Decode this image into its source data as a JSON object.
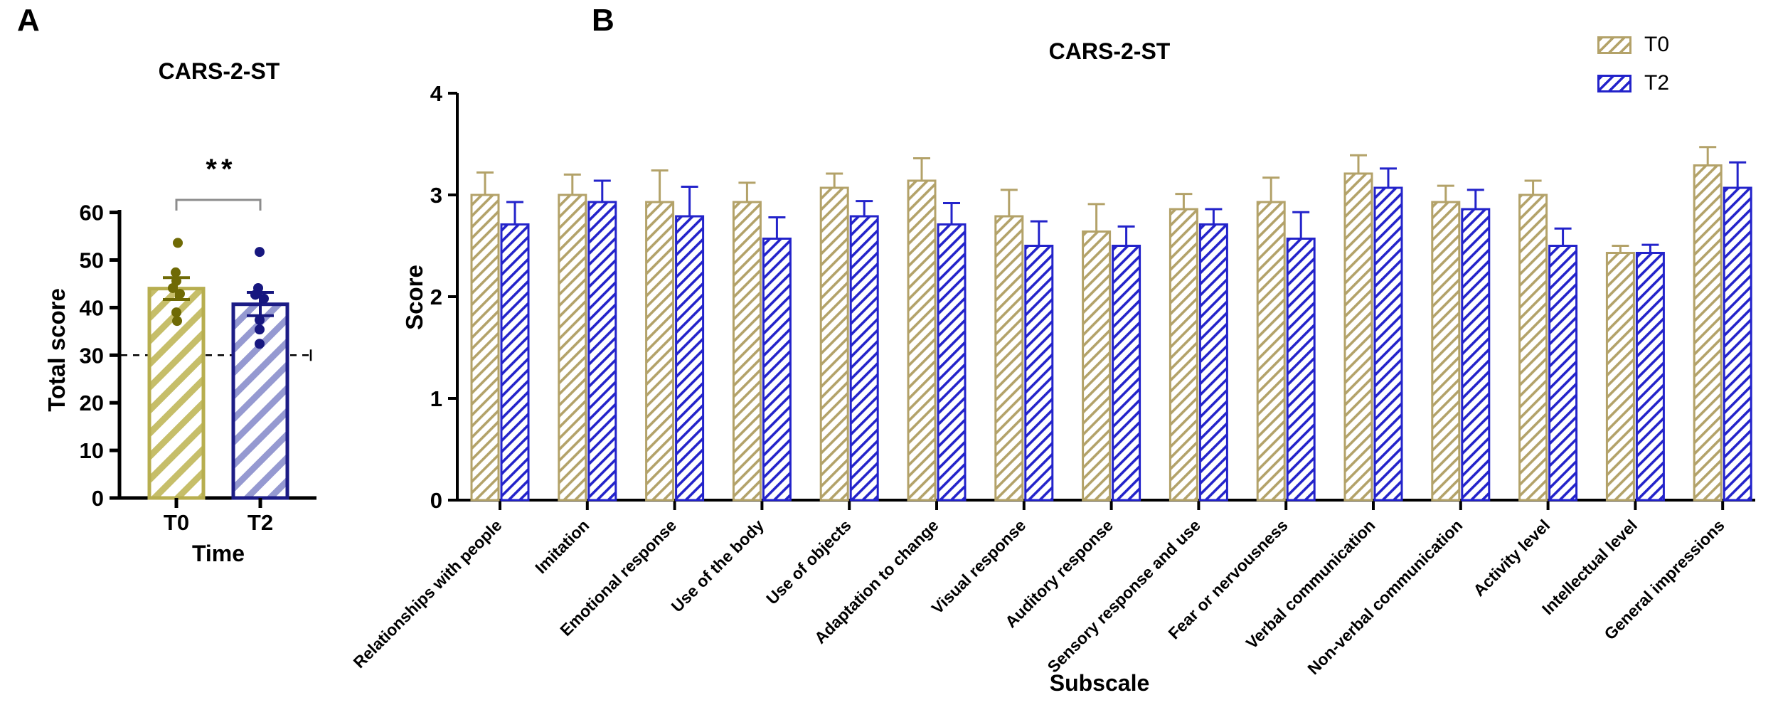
{
  "figure": {
    "panel_a_label": "A",
    "panel_b_label": "B",
    "legend": [
      {
        "label": "T0"
      },
      {
        "label": "T2"
      }
    ]
  },
  "colors": {
    "panel_a_t0_edge": "#b7ae4f",
    "panel_a_t0_hatch": "#c6be69",
    "panel_a_t0_dark": "#6f6a05",
    "panel_a_t2_edge": "#1c1c86",
    "panel_a_t2_hatch": "#9599d1",
    "panel_a_t2_dark": "#17177f",
    "panel_b_t0": "#b3a269",
    "panel_b_t2": "#2323ca",
    "bracket": "#8c8c8c",
    "axis": "#000000"
  },
  "chart_data": [
    {
      "id": "panel-a-total-score",
      "type": "bar",
      "title": "CARS-2-ST",
      "xlabel": "Time",
      "ylabel": "Total score",
      "categories": [
        "T0",
        "T2"
      ],
      "values": [
        44.0,
        40.7
      ],
      "error_up": [
        2.3,
        2.5
      ],
      "error_down": [
        2.3,
        2.4
      ],
      "scatter": {
        "T0": [
          53.6,
          47.4,
          45.6,
          44.1,
          42.9,
          39.0,
          37.2
        ],
        "T2": [
          51.7,
          44.1,
          42.7,
          41.9,
          37.4,
          35.4,
          32.4
        ]
      },
      "yticks": [
        0,
        10,
        20,
        30,
        40,
        50,
        60
      ],
      "ylim": [
        0,
        60
      ],
      "reference_line_y": 30,
      "significance": {
        "label": "**",
        "between": [
          "T0",
          "T2"
        ]
      },
      "grid": false
    },
    {
      "id": "panel-b-subscales",
      "type": "bar",
      "title": "CARS-2-ST",
      "xlabel": "Subscale",
      "ylabel": "Score",
      "categories": [
        "Relationships with people",
        "Imitation",
        "Emotional response",
        "Use of the body",
        "Use of objects",
        "Adaptation to change",
        "Visual response",
        "Auditory response",
        "Sensory response and use",
        "Fear or nervousness",
        "Verbal communication",
        "Non-verbal communication",
        "Activity level",
        "Intellectual level",
        "General impressions"
      ],
      "series": [
        {
          "name": "T0",
          "values": [
            3.0,
            3.0,
            2.93,
            2.93,
            3.07,
            3.14,
            2.79,
            2.64,
            2.86,
            2.93,
            3.21,
            2.93,
            3.0,
            2.43,
            3.29
          ],
          "error_up": [
            0.22,
            0.2,
            0.31,
            0.19,
            0.14,
            0.22,
            0.26,
            0.27,
            0.15,
            0.24,
            0.18,
            0.16,
            0.14,
            0.07,
            0.18
          ]
        },
        {
          "name": "T2",
          "values": [
            2.71,
            2.93,
            2.79,
            2.57,
            2.79,
            2.71,
            2.5,
            2.5,
            2.71,
            2.57,
            3.07,
            2.86,
            2.5,
            2.43,
            3.07
          ],
          "error_up": [
            0.22,
            0.21,
            0.29,
            0.21,
            0.15,
            0.21,
            0.24,
            0.19,
            0.15,
            0.26,
            0.19,
            0.19,
            0.17,
            0.08,
            0.25
          ]
        }
      ],
      "yticks": [
        0,
        1,
        2,
        3,
        4
      ],
      "ylim": [
        0,
        4
      ],
      "legend_position": "top-right",
      "grid": false
    }
  ]
}
